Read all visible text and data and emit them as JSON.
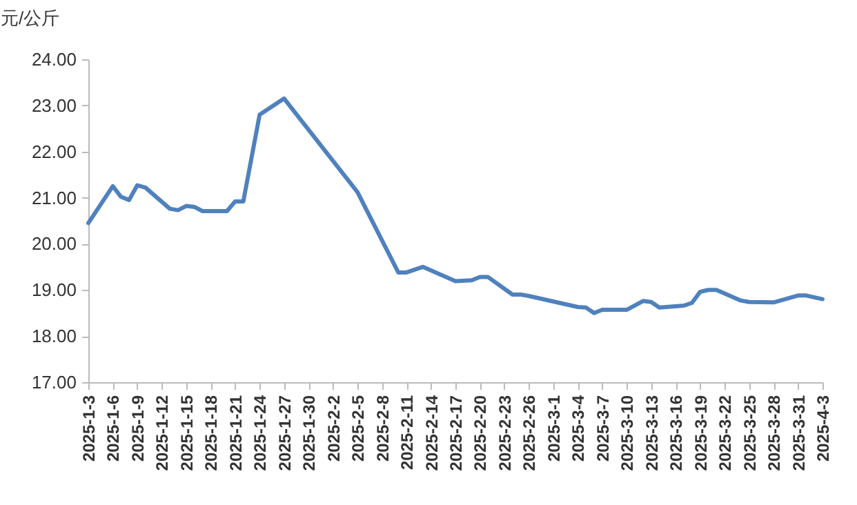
{
  "chart_data": {
    "type": "line",
    "ylabel": "元/公斤",
    "color": "#4f81bd",
    "x": [
      "2025-01-03",
      "2025-01-06",
      "2025-01-07",
      "2025-01-08",
      "2025-01-09",
      "2025-01-10",
      "2025-01-13",
      "2025-01-14",
      "2025-01-15",
      "2025-01-16",
      "2025-01-17",
      "2025-01-20",
      "2025-01-21",
      "2025-01-22",
      "2025-01-24",
      "2025-01-27",
      "2025-02-05",
      "2025-02-10",
      "2025-02-11",
      "2025-02-13",
      "2025-02-17",
      "2025-02-19",
      "2025-02-20",
      "2025-02-21",
      "2025-02-24",
      "2025-02-25",
      "2025-02-26",
      "2025-03-04",
      "2025-03-05",
      "2025-03-06",
      "2025-03-07",
      "2025-03-10",
      "2025-03-12",
      "2025-03-13",
      "2025-03-14",
      "2025-03-17",
      "2025-03-18",
      "2025-03-19",
      "2025-03-20",
      "2025-03-21",
      "2025-03-24",
      "2025-03-25",
      "2025-03-28",
      "2025-03-31",
      "2025-04-01",
      "2025-04-03"
    ],
    "values": [
      20.45,
      21.25,
      21.02,
      20.95,
      21.27,
      21.22,
      20.76,
      20.73,
      20.82,
      20.8,
      20.71,
      20.71,
      20.92,
      20.92,
      22.8,
      23.15,
      21.12,
      19.38,
      19.38,
      19.5,
      19.19,
      19.21,
      19.28,
      19.28,
      18.9,
      18.9,
      18.87,
      18.63,
      18.62,
      18.5,
      18.57,
      18.57,
      18.76,
      18.74,
      18.62,
      18.66,
      18.72,
      18.96,
      19.0,
      19.0,
      18.77,
      18.74,
      18.73,
      18.88,
      18.88,
      18.8
    ],
    "xlim": [
      "2025-01-03",
      "2025-04-03"
    ],
    "xticks": [
      {
        "value": "2025-01-03",
        "label": "2025-1-3"
      },
      {
        "value": "2025-01-06",
        "label": "2025-1-6"
      },
      {
        "value": "2025-01-09",
        "label": "2025-1-9"
      },
      {
        "value": "2025-01-12",
        "label": "2025-1-12"
      },
      {
        "value": "2025-01-15",
        "label": "2025-1-15"
      },
      {
        "value": "2025-01-18",
        "label": "2025-1-18"
      },
      {
        "value": "2025-01-21",
        "label": "2025-1-21"
      },
      {
        "value": "2025-01-24",
        "label": "2025-1-24"
      },
      {
        "value": "2025-01-27",
        "label": "2025-1-27"
      },
      {
        "value": "2025-01-30",
        "label": "2025-1-30"
      },
      {
        "value": "2025-02-02",
        "label": "2025-2-2"
      },
      {
        "value": "2025-02-05",
        "label": "2025-2-5"
      },
      {
        "value": "2025-02-08",
        "label": "2025-2-8"
      },
      {
        "value": "2025-02-11",
        "label": "2025-2-11"
      },
      {
        "value": "2025-02-14",
        "label": "2025-2-14"
      },
      {
        "value": "2025-02-17",
        "label": "2025-2-17"
      },
      {
        "value": "2025-02-20",
        "label": "2025-2-20"
      },
      {
        "value": "2025-02-23",
        "label": "2025-2-23"
      },
      {
        "value": "2025-02-26",
        "label": "2025-2-26"
      },
      {
        "value": "2025-03-01",
        "label": "2025-3-1"
      },
      {
        "value": "2025-03-04",
        "label": "2025-3-4"
      },
      {
        "value": "2025-03-07",
        "label": "2025-3-7"
      },
      {
        "value": "2025-03-10",
        "label": "2025-3-10"
      },
      {
        "value": "2025-03-13",
        "label": "2025-3-13"
      },
      {
        "value": "2025-03-16",
        "label": "2025-3-16"
      },
      {
        "value": "2025-03-19",
        "label": "2025-3-19"
      },
      {
        "value": "2025-03-22",
        "label": "2025-3-22"
      },
      {
        "value": "2025-03-25",
        "label": "2025-3-25"
      },
      {
        "value": "2025-03-28",
        "label": "2025-3-28"
      },
      {
        "value": "2025-03-31",
        "label": "2025-3-31"
      },
      {
        "value": "2025-04-03",
        "label": "2025-4-3"
      }
    ],
    "ylim": [
      17,
      24
    ],
    "yticks": [
      {
        "value": 17,
        "label": "17.00"
      },
      {
        "value": 18,
        "label": "18.00"
      },
      {
        "value": 19,
        "label": "19.00"
      },
      {
        "value": 20,
        "label": "20.00"
      },
      {
        "value": 21,
        "label": "21.00"
      },
      {
        "value": 22,
        "label": "22.00"
      },
      {
        "value": 23,
        "label": "23.00"
      },
      {
        "value": 24,
        "label": "24.00"
      }
    ],
    "grid": false,
    "marker": "none",
    "line_style": "solid"
  }
}
